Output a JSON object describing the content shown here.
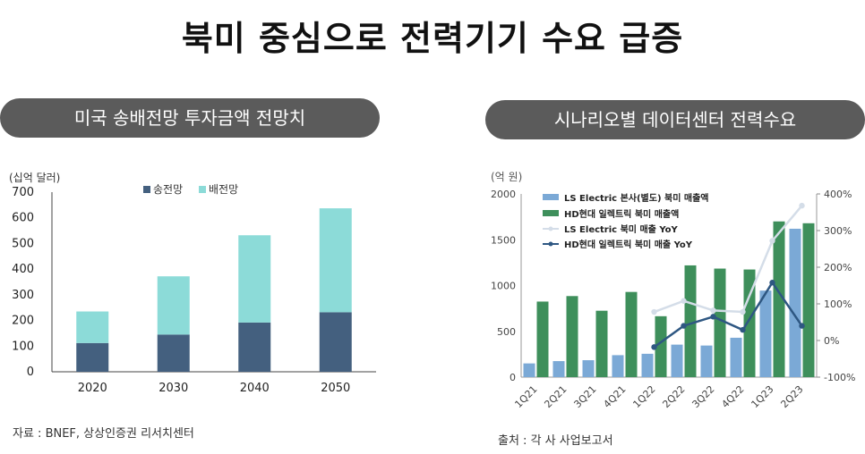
{
  "title": "북미 중심으로 전력기기 수요 급증",
  "left_panel": {
    "header": "미국 송배전망 투자금액 전망치",
    "source": "자료 : BNEF, 상상인증권 리서치센터"
  },
  "right_panel": {
    "header": "시나리오별 데이터센터 전력수요",
    "source": "출처 : 각 사 사업보고서"
  },
  "colors": {
    "transmission": "#44607f",
    "distribution": "#8cdbd8",
    "ls_bar": "#7ba9d6",
    "hd_bar": "#3e8f5b",
    "ls_line": "#d4dde8",
    "hd_line": "#2e5782",
    "pill": "#5b5b5b"
  },
  "chart_data": [
    {
      "type": "bar",
      "stacked": true,
      "title": "",
      "ylabel": "(십억 달러)",
      "categories": [
        "2020",
        "2030",
        "2040",
        "2050"
      ],
      "ylim": [
        0,
        700
      ],
      "yticks": [
        0,
        100,
        200,
        300,
        400,
        500,
        600,
        700
      ],
      "series": [
        {
          "name": "송전망",
          "values": [
            112,
            145,
            192,
            232
          ]
        },
        {
          "name": "배전망",
          "values": [
            123,
            227,
            340,
            405
          ]
        }
      ],
      "legend": "top-center"
    },
    {
      "type": "bar",
      "combo": true,
      "title": "",
      "ylabel": "(억 원)",
      "categories": [
        "1Q21",
        "2Q21",
        "3Q21",
        "4Q21",
        "1Q22",
        "2Q22",
        "3Q22",
        "4Q22",
        "1Q23",
        "2Q23"
      ],
      "ylim": [
        0,
        2000
      ],
      "yticks": [
        0,
        500,
        1000,
        1500,
        2000
      ],
      "y2lim": [
        -100,
        400
      ],
      "y2ticks": [
        "-100%",
        "0%",
        "100%",
        "200%",
        "300%",
        "400%"
      ],
      "y2tick_values": [
        -100,
        0,
        100,
        200,
        300,
        400
      ],
      "bar_series": [
        {
          "name": "LS Electric 본사(별도) 북미 매출액",
          "values": [
            150,
            175,
            185,
            240,
            255,
            355,
            345,
            430,
            945,
            1620
          ]
        },
        {
          "name": "HD현대 일렉트릭 북미 매출액",
          "values": [
            825,
            885,
            725,
            930,
            665,
            1220,
            1185,
            1175,
            1700,
            1680
          ]
        }
      ],
      "line_series": [
        {
          "name": "LS Electric 북미 매출 YoY",
          "values": [
            null,
            null,
            null,
            null,
            78,
            108,
            82,
            78,
            272,
            368
          ]
        },
        {
          "name": "HD현대 일렉트릭 북미 매출 YoY",
          "values": [
            null,
            null,
            null,
            null,
            -18,
            40,
            65,
            29,
            158,
            40
          ]
        }
      ],
      "legend": "top-left"
    }
  ]
}
